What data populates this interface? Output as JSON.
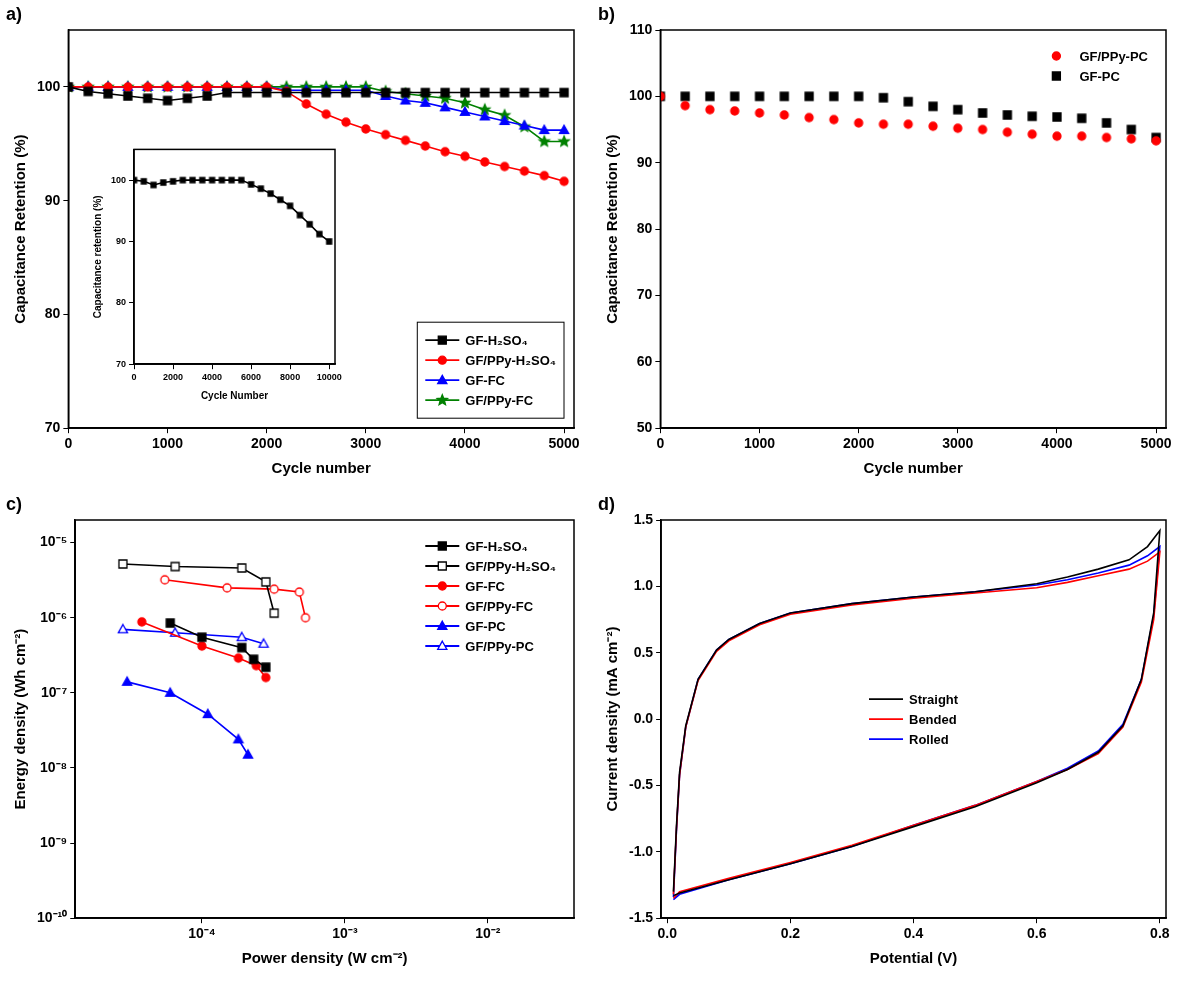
{
  "chart_data": [
    {
      "type": "line",
      "panel_label": "a)",
      "x_label": "Cycle number",
      "y_label": "Capacitance Retention (%)",
      "xlim": [
        0,
        5100
      ],
      "xticks": [
        0,
        1000,
        2000,
        3000,
        4000,
        5000
      ],
      "ylim": [
        70,
        105
      ],
      "yticks": [
        70,
        80,
        90,
        100
      ],
      "grid": false,
      "legend": "lower right",
      "x": [
        0,
        200,
        400,
        600,
        800,
        1000,
        1200,
        1400,
        1600,
        1800,
        2000,
        2200,
        2400,
        2600,
        2800,
        3000,
        3200,
        3400,
        3600,
        3800,
        4000,
        4200,
        4400,
        4600,
        4800,
        5000
      ],
      "series": [
        {
          "name": "GF-H₂SO₄",
          "color": "#000000",
          "marker": "square",
          "line_style": "solid",
          "values": [
            100,
            99.6,
            99.4,
            99.2,
            99.0,
            98.8,
            99.0,
            99.2,
            99.5,
            99.5,
            99.5,
            99.5,
            99.5,
            99.5,
            99.5,
            99.5,
            99.5,
            99.5,
            99.5,
            99.5,
            99.5,
            99.5,
            99.5,
            99.5,
            99.5,
            99.5
          ]
        },
        {
          "name": "GF/PPy-H₂SO₄",
          "color": "#ff0000",
          "marker": "circle",
          "line_style": "solid",
          "values": [
            100,
            100,
            100,
            100,
            100,
            100,
            100,
            100,
            100,
            100,
            100,
            99.6,
            98.5,
            97.6,
            96.9,
            96.3,
            95.8,
            95.3,
            94.8,
            94.3,
            93.9,
            93.4,
            93.0,
            92.6,
            92.2,
            91.7
          ]
        },
        {
          "name": "GF-FC",
          "color": "#0000ff",
          "marker": "triangle",
          "line_style": "solid",
          "values": [
            100,
            100,
            100,
            100,
            100,
            100,
            100,
            100,
            100,
            100,
            100,
            99.7,
            99.7,
            99.7,
            99.7,
            99.7,
            99.2,
            98.8,
            98.6,
            98.2,
            97.8,
            97.4,
            97.0,
            96.6,
            96.2,
            96.2
          ]
        },
        {
          "name": "GF/PPy-FC",
          "color": "#008000",
          "marker": "star",
          "line_style": "solid",
          "values": [
            100,
            100,
            100,
            100,
            100,
            100,
            100,
            100,
            100,
            100,
            100,
            100,
            100,
            100,
            100,
            100,
            99.6,
            99.4,
            99.2,
            99.0,
            98.6,
            98.0,
            97.5,
            96.5,
            95.2,
            95.2
          ]
        }
      ],
      "inset": {
        "type": "line",
        "x_label": "Cycle Number",
        "y_label": "Capacitance retention (%)",
        "xlim": [
          0,
          10300
        ],
        "xticks": [
          0,
          2000,
          4000,
          6000,
          8000,
          10000
        ],
        "ylim": [
          70,
          105
        ],
        "yticks": [
          70,
          80,
          90,
          100
        ],
        "grid": false,
        "color": "#000000",
        "marker": "square",
        "line_style": "solid",
        "x": [
          0,
          500,
          1000,
          1500,
          2000,
          2500,
          3000,
          3500,
          4000,
          4500,
          5000,
          5500,
          6000,
          6500,
          7000,
          7500,
          8000,
          8500,
          9000,
          9500,
          10000
        ],
        "values": [
          100,
          99.8,
          99.2,
          99.6,
          99.8,
          100,
          100,
          100,
          100,
          100,
          100,
          100,
          99.3,
          98.6,
          97.8,
          96.8,
          95.8,
          94.3,
          92.8,
          91.2,
          90.0
        ]
      }
    },
    {
      "type": "scatter",
      "panel_label": "b)",
      "x_label": "Cycle number",
      "y_label": "Capacitance Retention (%)",
      "xlim": [
        0,
        5100
      ],
      "xticks": [
        0,
        1000,
        2000,
        3000,
        4000,
        5000
      ],
      "ylim": [
        50,
        110
      ],
      "yticks": [
        50,
        60,
        70,
        80,
        90,
        100,
        110
      ],
      "grid": false,
      "legend": "upper right",
      "x": [
        0,
        250,
        500,
        750,
        1000,
        1250,
        1500,
        1750,
        2000,
        2250,
        2500,
        2750,
        3000,
        3250,
        3500,
        3750,
        4000,
        4250,
        4500,
        4750,
        5000
      ],
      "series": [
        {
          "name": "GF/PPy-PC",
          "color": "#ff0000",
          "marker": "circle",
          "line_style": "none",
          "values": [
            100,
            98.6,
            98.0,
            97.8,
            97.5,
            97.2,
            96.8,
            96.5,
            96.0,
            95.8,
            95.8,
            95.5,
            95.2,
            95.0,
            94.6,
            94.3,
            94.0,
            94.0,
            93.8,
            93.6,
            93.3
          ]
        },
        {
          "name": "GF-PC",
          "color": "#000000",
          "marker": "square",
          "line_style": "none",
          "values": [
            100,
            100,
            100,
            100,
            100,
            100,
            100,
            100,
            100,
            99.8,
            99.2,
            98.5,
            98.0,
            97.5,
            97.2,
            97.0,
            96.9,
            96.7,
            96.0,
            95.0,
            93.8
          ]
        }
      ]
    },
    {
      "type": "line",
      "panel_label": "c)",
      "x_label": "Power density (W cm⁻²)",
      "y_label": "Energy density (Wh cm⁻²)",
      "log": true,
      "grid": false,
      "legend": "upper right",
      "xlim": [
        1.3e-05,
        0.04
      ],
      "xticks": [
        {
          "value": 0.0001,
          "label": "10⁻⁴"
        },
        {
          "value": 0.001,
          "label": "10⁻³"
        },
        {
          "value": 0.01,
          "label": "10⁻²"
        }
      ],
      "ylim": [
        1e-10,
        2e-05
      ],
      "yticks": [
        {
          "value": 1e-10,
          "label": "10⁻¹⁰"
        },
        {
          "value": 1e-09,
          "label": "10⁻⁹"
        },
        {
          "value": 1e-08,
          "label": "10⁻⁸"
        },
        {
          "value": 1e-07,
          "label": "10⁻⁷"
        },
        {
          "value": 1e-06,
          "label": "10⁻⁶"
        },
        {
          "value": 1e-05,
          "label": "10⁻⁵"
        }
      ],
      "series": [
        {
          "name": "GF-H₂SO₄",
          "color": "#000000",
          "marker": "square",
          "line_style": "solid",
          "x": [
            6e-05,
            0.0001,
            0.00019,
            0.00023,
            0.00028
          ],
          "values": [
            8.5e-07,
            5.5e-07,
            4e-07,
            2.8e-07,
            2.2e-07
          ]
        },
        {
          "name": "GF/PPy-H₂SO₄",
          "color": "#000000",
          "marker": "square-open",
          "line_style": "solid",
          "x": [
            2.8e-05,
            6.5e-05,
            0.00019,
            0.00028,
            0.00032
          ],
          "values": [
            5.2e-06,
            4.8e-06,
            4.6e-06,
            3e-06,
            1.15e-06
          ]
        },
        {
          "name": "GF-FC",
          "color": "#ff0000",
          "marker": "circle",
          "line_style": "solid",
          "x": [
            3.8e-05,
            0.0001,
            0.00018,
            0.00024,
            0.00028
          ],
          "values": [
            8.8e-07,
            4.2e-07,
            2.9e-07,
            2.3e-07,
            1.6e-07
          ]
        },
        {
          "name": "GF/PPy-FC",
          "color": "#ff0000",
          "marker": "circle-open",
          "line_style": "solid",
          "x": [
            5.5e-05,
            0.00015,
            0.00032,
            0.00048,
            0.00053
          ],
          "values": [
            3.2e-06,
            2.5e-06,
            2.4e-06,
            2.2e-06,
            1e-06
          ]
        },
        {
          "name": "GF-PC",
          "color": "#0000ff",
          "marker": "triangle",
          "line_style": "solid",
          "x": [
            3e-05,
            6e-05,
            0.00011,
            0.00018,
            0.00021
          ],
          "values": [
            1.4e-07,
            1e-07,
            5.2e-08,
            2.4e-08,
            1.5e-08
          ]
        },
        {
          "name": "GF/PPy-PC",
          "color": "#0000ff",
          "marker": "triangle-open",
          "line_style": "solid",
          "x": [
            2.8e-05,
            6.5e-05,
            0.00019,
            0.00027
          ],
          "values": [
            7e-07,
            6.3e-07,
            5.5e-07,
            4.5e-07
          ]
        }
      ]
    },
    {
      "type": "line",
      "panel_label": "d)",
      "x_label": "Potential (V)",
      "y_label": "Current density (mA cm⁻²)",
      "xlim": [
        -0.01,
        0.81
      ],
      "xticks": [
        {
          "value": 0,
          "label": "0.0"
        },
        0.2,
        0.4,
        0.6,
        0.8
      ],
      "ylim": [
        -1.5,
        1.5
      ],
      "yticks": [
        -1.5,
        {
          "value": -1,
          "label": "-1.0"
        },
        -0.5,
        {
          "value": 0,
          "label": "0.0"
        },
        0.5,
        {
          "value": 1,
          "label": "1.0"
        },
        1.5
      ],
      "grid": false,
      "legend": "center",
      "x": [
        0.01,
        0.015,
        0.02,
        0.03,
        0.05,
        0.08,
        0.1,
        0.15,
        0.2,
        0.3,
        0.4,
        0.5,
        0.6,
        0.65,
        0.7,
        0.75,
        0.78,
        0.8,
        0.79,
        0.77,
        0.74,
        0.7,
        0.65,
        0.6,
        0.5,
        0.4,
        0.3,
        0.2,
        0.1,
        0.02,
        0.01
      ],
      "series": [
        {
          "name": "Straight",
          "color": "#000000",
          "marker": "none",
          "line_style": "solid",
          "values": [
            -1.3,
            -0.8,
            -0.4,
            -0.05,
            0.3,
            0.52,
            0.6,
            0.72,
            0.8,
            0.87,
            0.92,
            0.96,
            1.02,
            1.07,
            1.13,
            1.2,
            1.3,
            1.42,
            0.8,
            0.3,
            -0.05,
            -0.25,
            -0.38,
            -0.48,
            -0.66,
            -0.81,
            -0.96,
            -1.09,
            -1.21,
            -1.31,
            -1.33
          ]
        },
        {
          "name": "Bended",
          "color": "#ff0000",
          "marker": "none",
          "line_style": "solid",
          "values": [
            -1.32,
            -0.82,
            -0.42,
            -0.06,
            0.29,
            0.51,
            0.59,
            0.71,
            0.79,
            0.86,
            0.91,
            0.95,
            0.99,
            1.03,
            1.08,
            1.13,
            1.19,
            1.26,
            0.75,
            0.28,
            -0.06,
            -0.26,
            -0.38,
            -0.47,
            -0.65,
            -0.8,
            -0.95,
            -1.08,
            -1.2,
            -1.3,
            -1.35
          ]
        },
        {
          "name": "Rolled",
          "color": "#0000ff",
          "marker": "none",
          "line_style": "solid",
          "values": [
            -1.34,
            -0.83,
            -0.42,
            -0.06,
            0.3,
            0.52,
            0.6,
            0.72,
            0.8,
            0.87,
            0.92,
            0.96,
            1.01,
            1.05,
            1.1,
            1.16,
            1.23,
            1.3,
            0.78,
            0.3,
            -0.04,
            -0.24,
            -0.37,
            -0.47,
            -0.65,
            -0.8,
            -0.96,
            -1.09,
            -1.21,
            -1.32,
            -1.36
          ]
        }
      ]
    }
  ]
}
